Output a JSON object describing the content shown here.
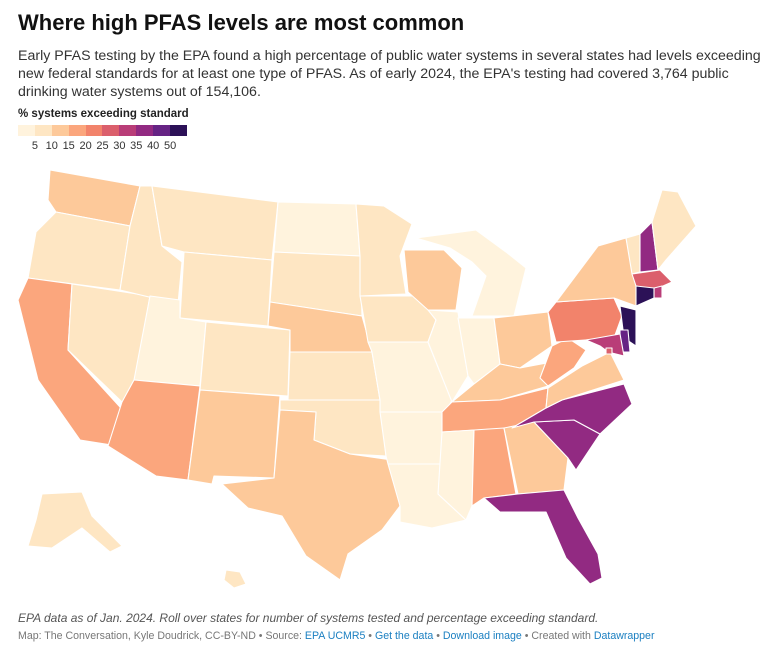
{
  "title": "Where high PFAS levels are most common",
  "description": "Early PFAS testing by the EPA found a high percentage of public water systems in several states had levels exceeding new federal standards for at least one type of PFAS. As of early 2024, the EPA's testing had covered 3,764 public drinking water systems out of 154,106.",
  "legend": {
    "title": "% systems exceeding standard",
    "labels": [
      "5",
      "10",
      "15",
      "20",
      "25",
      "30",
      "35",
      "40",
      "50"
    ],
    "colors": [
      "#fff3dd",
      "#fee6c3",
      "#fdc99a",
      "#fba67d",
      "#f2836b",
      "#db5f6c",
      "#b93d78",
      "#922a82",
      "#662384",
      "#2c1157"
    ]
  },
  "states": {
    "WA": 2,
    "OR": 1,
    "CA": 3,
    "NV": 1,
    "ID": 1,
    "MT": 1,
    "WY": 1,
    "UT": 0,
    "AZ": 3,
    "CO": 1,
    "NM": 2,
    "ND": 0,
    "SD": 1,
    "NE": 2,
    "KS": 1,
    "OK": 1,
    "TX": 2,
    "MN": 1,
    "IA": 1,
    "MO": 0,
    "AR": 0,
    "LA": 0,
    "WI": 2,
    "IL": 0,
    "MI": 0,
    "IN": 0,
    "OH": 2,
    "KY": 2,
    "TN": 3,
    "MS": 0,
    "AL": 3,
    "GA": 2,
    "FL": 7,
    "SC": 7,
    "NC": 7,
    "VA": 2,
    "WV": 3,
    "PA": 4,
    "NY": 2,
    "VT": 1,
    "NH": 7,
    "ME": 1,
    "MA": 5,
    "RI": 6,
    "CT": 9,
    "NJ": 9,
    "DE": 8,
    "MD": 6,
    "DC": 5,
    "AK": 1,
    "HI": 1
  },
  "note": "EPA data as of Jan. 2024. Roll over states for number of systems tested and percentage exceeding standard.",
  "footer": {
    "prefix": "Map: The Conversation, Kyle Doudrick, CC-BY-ND • Source: ",
    "source_link": "EPA UCMR5",
    "sep1": " • ",
    "get_data": "Get the data",
    "sep2": " • ",
    "download": "Download image",
    "sep3": " • Created with ",
    "datawrapper": "Datawrapper"
  }
}
